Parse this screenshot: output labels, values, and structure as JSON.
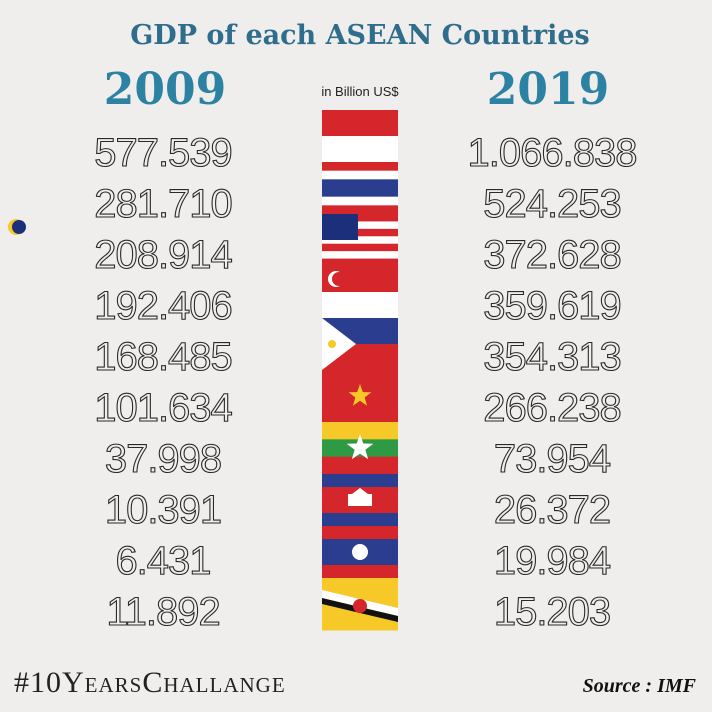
{
  "header": {
    "title": "GDP of each ASEAN Countries",
    "year_left": "2009",
    "year_right": "2019",
    "unit": "in Billion US$"
  },
  "table": {
    "rows": [
      [
        "577.539",
        "1.066.838"
      ],
      [
        "281.710",
        "524.253"
      ],
      [
        "208.914",
        "372.628"
      ],
      [
        "192.406",
        "359.619"
      ],
      [
        "168.485",
        "354.313"
      ],
      [
        "101.634",
        "266.238"
      ],
      [
        "37.998",
        "73.954"
      ],
      [
        "10.391",
        "26.372"
      ],
      [
        "6.431",
        "19.984"
      ],
      [
        "11.892",
        "15.203"
      ]
    ]
  },
  "footer": {
    "hashtag": "#10YearsChallange",
    "source": "Source : IMF"
  }
}
